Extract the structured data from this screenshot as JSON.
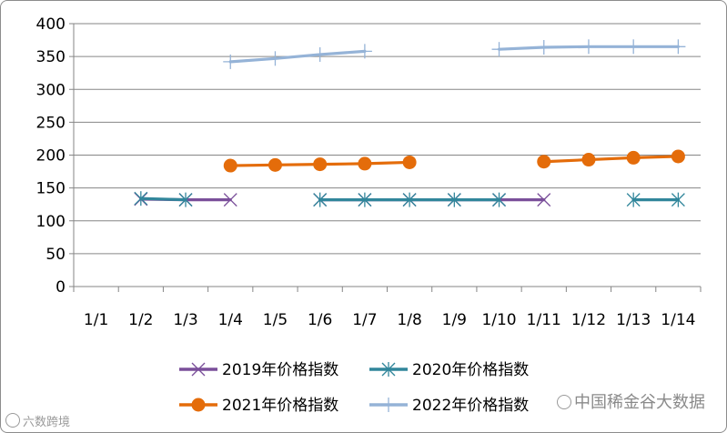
{
  "chart_data": {
    "type": "line",
    "title": "",
    "xlabel": "",
    "ylabel": "",
    "categories": [
      "1/1",
      "1/2",
      "1/3",
      "1/4",
      "1/5",
      "1/6",
      "1/7",
      "1/8",
      "1/9",
      "1/10",
      "1/11",
      "1/12",
      "1/13",
      "1/14"
    ],
    "ylim": [
      0,
      400
    ],
    "yticks": [
      0,
      50,
      100,
      150,
      200,
      250,
      300,
      350,
      400
    ],
    "grid": true,
    "legend_position": "bottom",
    "series": [
      {
        "name": "2019年价格指数",
        "color": "#7a4f9a",
        "marker": "x",
        "values": [
          null,
          133,
          132,
          132,
          null,
          132,
          132,
          132,
          132,
          132,
          132,
          null,
          null,
          null
        ]
      },
      {
        "name": "2020年价格指数",
        "color": "#31869b",
        "marker": "asterisk",
        "values": [
          null,
          134,
          132,
          null,
          null,
          132,
          132,
          132,
          132,
          132,
          null,
          null,
          132,
          132
        ]
      },
      {
        "name": "2021年价格指数",
        "color": "#e46c0a",
        "marker": "circle",
        "values": [
          null,
          null,
          null,
          184,
          185,
          186,
          187,
          189,
          null,
          null,
          190,
          193,
          196,
          198
        ]
      },
      {
        "name": "2022年价格指数",
        "color": "#95b3d7",
        "marker": "plus",
        "values": [
          null,
          null,
          null,
          342,
          347,
          353,
          358,
          null,
          null,
          361,
          364,
          365,
          365,
          365
        ]
      }
    ]
  },
  "watermarks": {
    "left": "六数跨境",
    "right": "中国稀金谷大数据"
  }
}
